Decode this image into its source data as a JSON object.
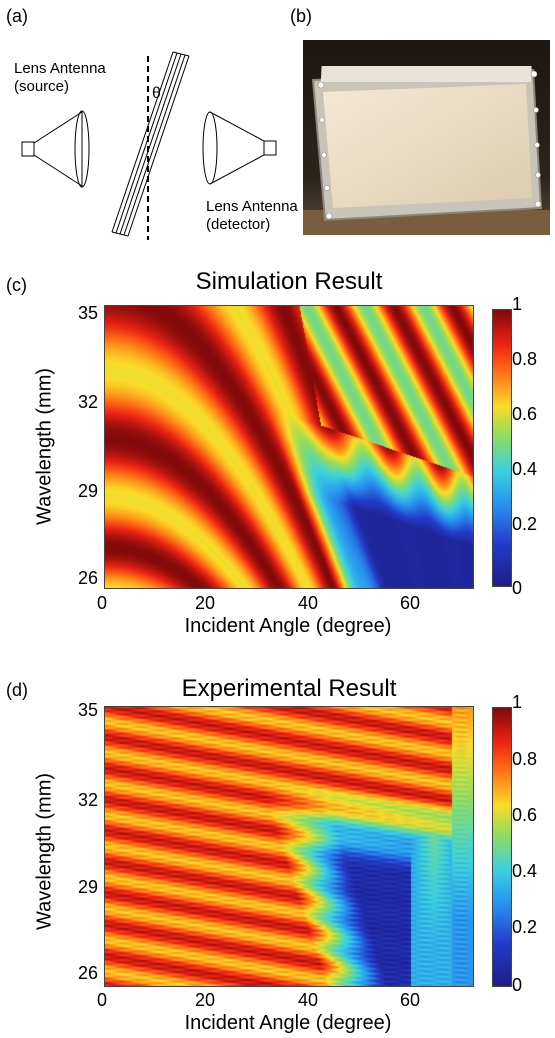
{
  "panels": {
    "a": "(a)",
    "b": "(b)",
    "c": "(c)",
    "d": "(d)"
  },
  "setup": {
    "source_label_1": "Lens Antenna",
    "source_label_2": "(source)",
    "detector_label_1": "Lens Antenna",
    "detector_label_2": "(detector)",
    "angle_symbol": "θ"
  },
  "colors": {
    "high": "#8b0000",
    "mid_high": "#ff2a00",
    "mid": "#ffd000",
    "mid_low": "#27c6f0",
    "low": "#1a2aa8"
  },
  "chart_data": [
    {
      "type": "heatmap",
      "title": "Simulation Result",
      "xlabel": "Incident Angle (degree)",
      "ylabel": "Wavelength (mm)",
      "xlim": [
        0,
        72
      ],
      "ylim": [
        25.6,
        35.5
      ],
      "xticks": [
        "0",
        "20",
        "40",
        "60"
      ],
      "xtick_values": [
        0,
        20,
        40,
        60
      ],
      "yticks": [
        "35",
        "32",
        "29",
        "26"
      ],
      "ytick_values": [
        35,
        32,
        29,
        26
      ],
      "colorbar": {
        "ticks": [
          "1",
          "0.8",
          "0.6",
          "0.4",
          "0.2",
          "0"
        ],
        "tick_values": [
          1,
          0.8,
          0.6,
          0.4,
          0.2,
          0
        ]
      },
      "description_model": "simulation"
    },
    {
      "type": "heatmap",
      "title": "Experimental Result",
      "xlabel": "Incident Angle (degree)",
      "ylabel": "Wavelength (mm)",
      "xlim": [
        0,
        72
      ],
      "ylim": [
        25.6,
        35.5
      ],
      "xticks": [
        "0",
        "20",
        "40",
        "60"
      ],
      "xtick_values": [
        0,
        20,
        40,
        60
      ],
      "yticks": [
        "35",
        "32",
        "29",
        "26"
      ],
      "ytick_values": [
        35,
        32,
        29,
        26
      ],
      "colorbar": {
        "ticks": [
          "1",
          "0.8",
          "0.6",
          "0.4",
          "0.2",
          "0"
        ],
        "tick_values": [
          1,
          0.8,
          0.6,
          0.4,
          0.2,
          0
        ]
      },
      "description_model": "experiment"
    }
  ]
}
